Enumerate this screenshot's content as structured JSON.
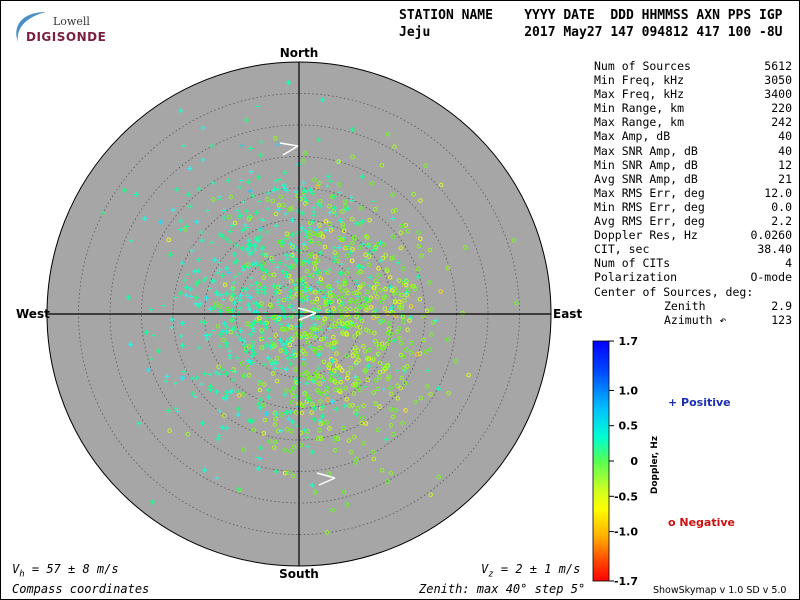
{
  "logo": {
    "top": "Lowell",
    "bottom": "DIGISONDE"
  },
  "header": {
    "labels_line": "STATION NAME    YYYY DATE  DDD HHMMSS AXN PPS IGP",
    "values_line": "Jeju            2017 May27 147 094812 417 100 -8U"
  },
  "compass": {
    "north": "North",
    "south": "South",
    "east": "East",
    "west": "West"
  },
  "stats": [
    {
      "label": "Num of Sources",
      "value": "5612"
    },
    {
      "label": "Min Freq, kHz",
      "value": "3050"
    },
    {
      "label": "Max Freq, kHz",
      "value": "3400"
    },
    {
      "label": "Min Range, km",
      "value": "220"
    },
    {
      "label": "Max Range, km",
      "value": "242"
    },
    {
      "label": "Max Amp, dB",
      "value": "40"
    },
    {
      "label": "Max SNR Amp, dB",
      "value": "40"
    },
    {
      "label": "Min SNR Amp, dB",
      "value": "12"
    },
    {
      "label": "Avg SNR Amp, dB",
      "value": "21"
    },
    {
      "label": "Max RMS Err, deg",
      "value": "12.0"
    },
    {
      "label": "Min RMS Err, deg",
      "value": "0.0"
    },
    {
      "label": "Avg RMS Err, deg",
      "value": "2.2"
    },
    {
      "label": "Doppler Res, Hz",
      "value": "0.0260"
    },
    {
      "label": "CIT, sec",
      "value": "38.40"
    },
    {
      "label": "Num of CITs",
      "value": "4"
    },
    {
      "label": "Polarization",
      "value": "O-mode"
    },
    {
      "label": "Center of Sources, deg:",
      "value": ""
    },
    {
      "label": "Zenith",
      "value": "2.9",
      "indent": true
    },
    {
      "label": "Azimuth ↶",
      "value": "123",
      "indent": true
    }
  ],
  "colorbar": {
    "ticks": [
      "1.7",
      "1.0",
      "0.5",
      "0",
      "-0.5",
      "-1.0",
      "-1.7"
    ],
    "tick_values": [
      1.7,
      1.0,
      0.5,
      0,
      -0.5,
      -1.0,
      -1.7
    ],
    "title": "Doppler, Hz"
  },
  "legend": {
    "positive": "+ Positive",
    "negative": "o Negative"
  },
  "velocity": {
    "vh_label": "V",
    "vh_sub": "h",
    "vh_value": " = 57 ± 8 m/s",
    "vz_label": "V",
    "vz_sub": "z",
    "vz_value": " = 2 ± 1 m/s"
  },
  "footer": {
    "coords": "Compass coordinates",
    "zenith": "Zenith: max 40°  step 5°",
    "software": "ShowSkymap v 1.0   SD v 5.0"
  },
  "skymap": {
    "zenith_max_deg": 40,
    "zenith_step_deg": 5,
    "center_of_sources": {
      "zenith_deg": 2.9,
      "azimuth_deg": 123
    },
    "doppler_range_hz": [
      -1.7,
      1.7
    ],
    "num_sources": 5612
  },
  "colors": {
    "disk": "#a6a6a6",
    "positive_marker": "#1a2fb3",
    "negative_marker": "#cc1111"
  }
}
